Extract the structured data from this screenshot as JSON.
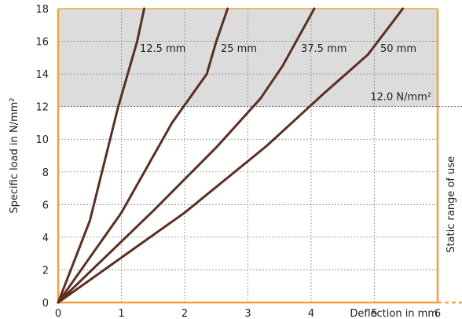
{
  "chart_data": {
    "type": "line",
    "xlabel": "Deflection in mm",
    "ylabel": "Specific load in N/mm²",
    "xlim": [
      0,
      6
    ],
    "ylim": [
      0,
      18
    ],
    "x_ticks": [
      "0",
      "1",
      "2",
      "3",
      "4",
      "5",
      "6"
    ],
    "y_ticks": [
      "0",
      "2",
      "4",
      "6",
      "8",
      "10",
      "12",
      "14",
      "16",
      "18"
    ],
    "grid": true,
    "series": [
      {
        "name": "12.5 mm",
        "x": [
          0,
          0.5,
          0.95,
          1.25,
          1.36
        ],
        "y": [
          0,
          5,
          12,
          16,
          18.2
        ]
      },
      {
        "name": "25 mm",
        "x": [
          0,
          1.0,
          1.8,
          2.35,
          2.5,
          2.68
        ],
        "y": [
          0,
          5.5,
          11,
          14,
          16,
          18.2
        ]
      },
      {
        "name": "37.5 mm",
        "x": [
          0,
          1.5,
          2.5,
          3.2,
          3.55,
          4.05
        ],
        "y": [
          0,
          5.6,
          9.5,
          12.5,
          14.5,
          18.2
        ]
      },
      {
        "name": "50 mm",
        "x": [
          0,
          2.0,
          3.3,
          4.2,
          4.9,
          5.45
        ],
        "y": [
          0,
          5.5,
          9.6,
          12.8,
          15.2,
          18.2
        ]
      }
    ],
    "threshold": {
      "y": 12,
      "label": "12.0 N/mm²"
    },
    "range_label": "Static range of use",
    "colors": {
      "curve": "#5b2f22",
      "accent": "#f2a33a",
      "shade": "#dcdcdc",
      "grid": "#8a8a8a"
    }
  }
}
